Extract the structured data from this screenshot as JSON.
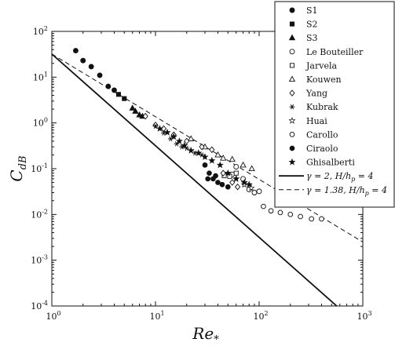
{
  "chart_data": {
    "type": "scatter",
    "xlabel": "Re",
    "xlabel_sub": "*",
    "ylabel": "C",
    "ylabel_sub": "dB",
    "xscale": "log",
    "yscale": "log",
    "xlim": [
      1,
      1000
    ],
    "ylim": [
      0.0001,
      100
    ],
    "x_ticks": [
      {
        "base": "10",
        "exp": "0"
      },
      {
        "base": "10",
        "exp": "1"
      },
      {
        "base": "10",
        "exp": "2"
      },
      {
        "base": "10",
        "exp": "3"
      }
    ],
    "y_ticks": [
      {
        "base": "10",
        "exp": "-4"
      },
      {
        "base": "10",
        "exp": "-3"
      },
      {
        "base": "10",
        "exp": "-2"
      },
      {
        "base": "10",
        "exp": "-1"
      },
      {
        "base": "10",
        "exp": "0"
      },
      {
        "base": "10",
        "exp": "1"
      },
      {
        "base": "10",
        "exp": "2"
      }
    ],
    "grid": false,
    "legend_position": "top-right",
    "series": [
      {
        "name": "S1",
        "marker": "filled-circle",
        "points": [
          [
            1.7,
            38
          ],
          [
            2.0,
            23
          ],
          [
            2.4,
            17
          ],
          [
            2.9,
            11
          ],
          [
            3.5,
            6.3
          ],
          [
            4.0,
            5.2
          ]
        ]
      },
      {
        "name": "S2",
        "marker": "filled-square",
        "points": [
          [
            4.4,
            4.2
          ],
          [
            5.0,
            3.4
          ]
        ]
      },
      {
        "name": "S3",
        "marker": "filled-triangle",
        "points": [
          [
            6.0,
            2.1
          ],
          [
            6.4,
            1.8
          ],
          [
            7.0,
            1.5
          ],
          [
            7.5,
            1.4
          ]
        ]
      },
      {
        "name": "Le Bouteiller",
        "marker": "open-circle",
        "points": [
          [
            55,
            0.075
          ],
          [
            60,
            0.11
          ],
          [
            70,
            0.06
          ],
          [
            80,
            0.035
          ],
          [
            90,
            0.03
          ],
          [
            100,
            0.032
          ]
        ]
      },
      {
        "name": "Jarvela",
        "marker": "open-square",
        "points": [
          [
            46,
            0.07
          ],
          [
            52,
            0.068
          ],
          [
            60,
            0.08
          ]
        ]
      },
      {
        "name": "Kouwen",
        "marker": "open-triangle",
        "points": [
          [
            22,
            0.45
          ],
          [
            30,
            0.3
          ],
          [
            40,
            0.2
          ],
          [
            45,
            0.17
          ],
          [
            55,
            0.16
          ],
          [
            70,
            0.12
          ],
          [
            85,
            0.1
          ]
        ]
      },
      {
        "name": "Yang",
        "marker": "open-diamond",
        "points": [
          [
            8,
            1.4
          ],
          [
            10,
            0.9
          ],
          [
            12,
            0.75
          ],
          [
            15,
            0.55
          ],
          [
            20,
            0.4
          ],
          [
            28,
            0.3
          ],
          [
            35,
            0.26
          ],
          [
            45,
            0.08
          ],
          [
            55,
            0.05
          ],
          [
            62,
            0.04
          ]
        ]
      },
      {
        "name": "Kubrak",
        "marker": "asterisk",
        "points": [
          [
            10,
            0.85
          ],
          [
            12,
            0.6
          ],
          [
            14,
            0.45
          ],
          [
            16,
            0.35
          ],
          [
            18,
            0.3
          ],
          [
            20,
            0.28
          ],
          [
            24,
            0.22
          ],
          [
            28,
            0.2
          ]
        ]
      },
      {
        "name": "Huai",
        "marker": "open-star",
        "points": [
          [
            60,
            0.06
          ],
          [
            72,
            0.045
          ],
          [
            84,
            0.038
          ]
        ]
      },
      {
        "name": "Carollo",
        "marker": "open-octagon",
        "points": [
          [
            110,
            0.015
          ],
          [
            130,
            0.012
          ],
          [
            160,
            0.011
          ],
          [
            200,
            0.01
          ],
          [
            250,
            0.009
          ],
          [
            320,
            0.008
          ],
          [
            400,
            0.008
          ]
        ]
      },
      {
        "name": "Ciraolo",
        "marker": "filled-octagon",
        "points": [
          [
            30,
            0.12
          ],
          [
            33,
            0.08
          ],
          [
            36,
            0.06
          ],
          [
            40,
            0.05
          ],
          [
            44,
            0.045
          ],
          [
            50,
            0.04
          ],
          [
            32,
            0.06
          ],
          [
            38,
            0.07
          ]
        ]
      },
      {
        "name": "Ghisalberti",
        "marker": "filled-star",
        "points": [
          [
            11,
            0.75
          ],
          [
            13,
            0.62
          ],
          [
            15,
            0.5
          ],
          [
            17,
            0.4
          ],
          [
            19,
            0.32
          ],
          [
            22,
            0.25
          ],
          [
            26,
            0.22
          ],
          [
            30,
            0.18
          ],
          [
            35,
            0.15
          ],
          [
            42,
            0.12
          ],
          [
            50,
            0.08
          ],
          [
            60,
            0.06
          ],
          [
            72,
            0.05
          ],
          [
            80,
            0.045
          ]
        ]
      }
    ],
    "lines": [
      {
        "label": "γ = 2, H/h_p = 4",
        "legend_math": "γ = 2, H/h",
        "legend_sub": "p",
        "legend_tail": " = 4",
        "style": "solid",
        "x": [
          1,
          560
        ],
        "y": [
          32,
          0.0001
        ]
      },
      {
        "label": "γ = 1.38, H/h_p = 4",
        "legend_math": "γ = 1.38, H/h",
        "legend_sub": "p",
        "legend_tail": " = 4",
        "style": "dashed",
        "x": [
          1,
          1000
        ],
        "y": [
          32,
          0.0025
        ]
      }
    ]
  }
}
